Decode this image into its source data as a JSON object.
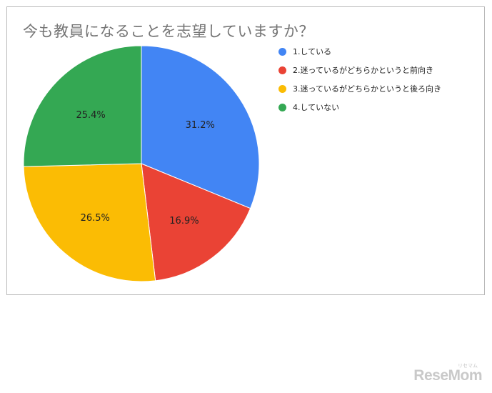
{
  "chart_data": {
    "type": "pie",
    "title": "今も教員になることを志望していますか？",
    "slices": [
      {
        "label": "1.している",
        "value": 31.2,
        "display": "31.2%",
        "color": "#4285f4"
      },
      {
        "label": "2.迷っているがどちらかというと前向き",
        "value": 16.9,
        "display": "16.9%",
        "color": "#ea4335"
      },
      {
        "label": "3.迷っているがどちらかというと後ろ向き",
        "value": 26.5,
        "display": "26.5%",
        "color": "#fbbc04"
      },
      {
        "label": "4.していない",
        "value": 25.4,
        "display": "25.4%",
        "color": "#34a853"
      }
    ],
    "start": "12 o'clock",
    "direction": "clockwise",
    "legend_position": "right"
  },
  "watermark": {
    "text": "ReseMom",
    "small_text": "リセマム"
  }
}
